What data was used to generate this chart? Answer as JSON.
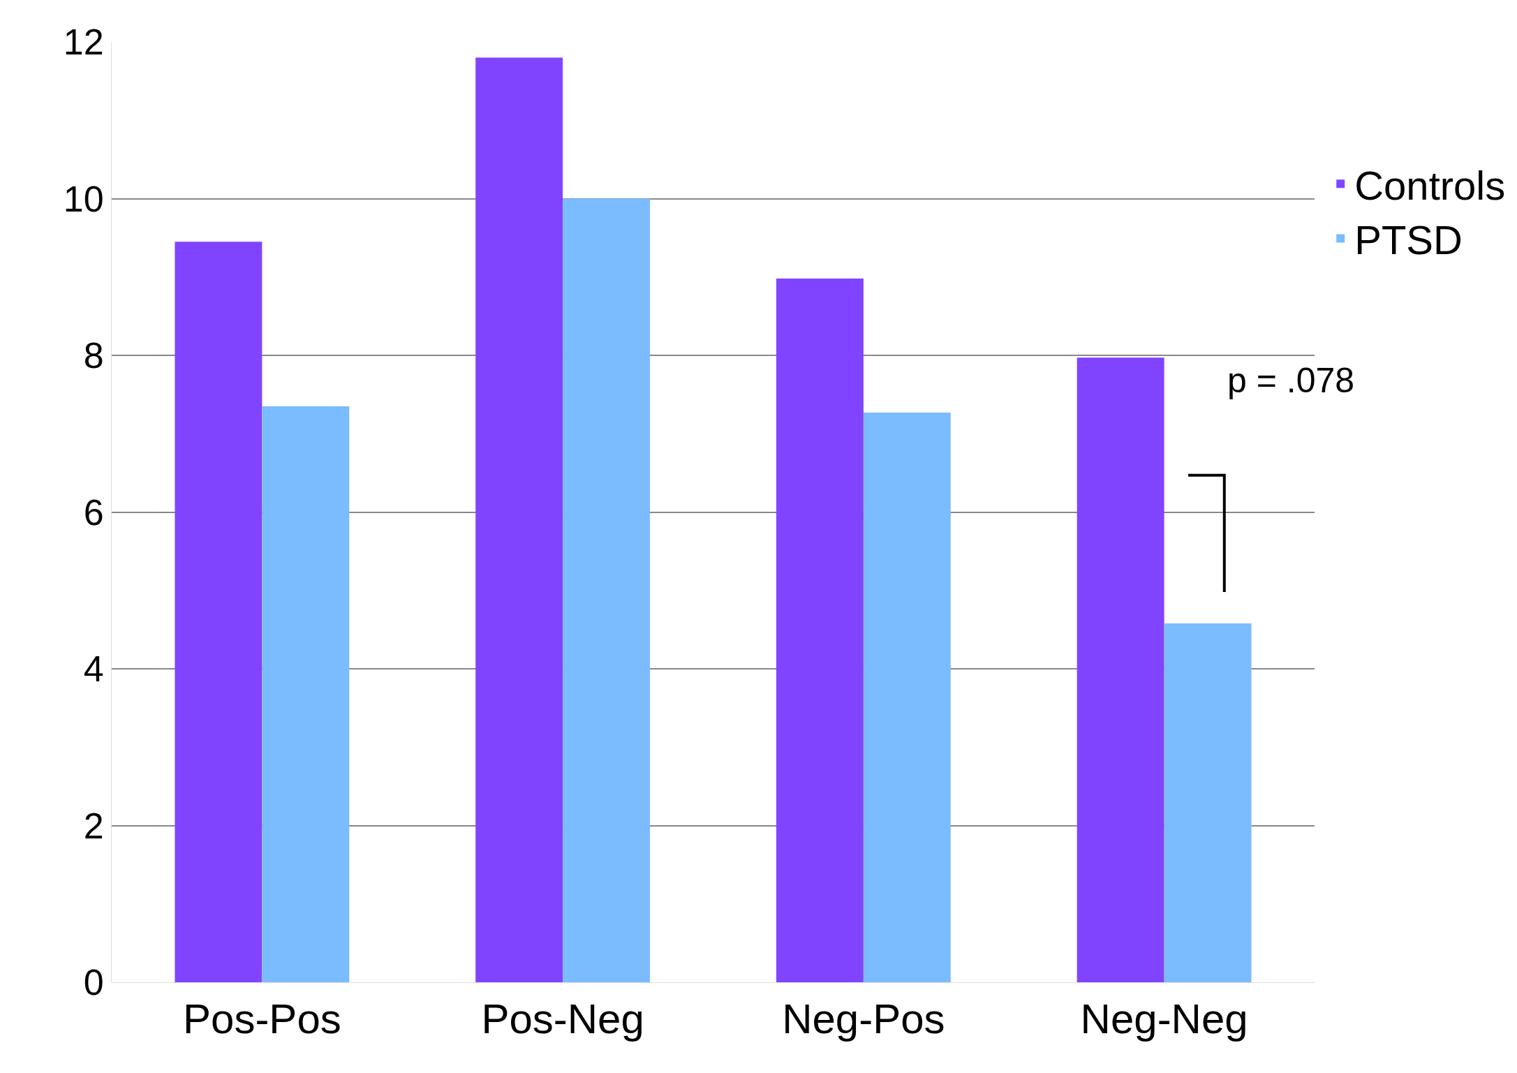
{
  "chart_data": {
    "type": "bar",
    "categories": [
      "Pos-Pos",
      "Pos-Neg",
      "Neg-Pos",
      "Neg-Neg"
    ],
    "series": [
      {
        "name": "Controls",
        "color": "#8044ff",
        "values": [
          9.45,
          11.8,
          8.98,
          7.97
        ]
      },
      {
        "name": "PTSD",
        "color": "#7abcff",
        "values": [
          7.35,
          10.0,
          7.27,
          4.58
        ]
      }
    ],
    "ylim": [
      0,
      12
    ],
    "yticks": [
      0,
      2,
      4,
      6,
      8,
      10,
      12
    ],
    "grid": "y",
    "legend": "right",
    "annotations": [
      "p = .078"
    ]
  }
}
